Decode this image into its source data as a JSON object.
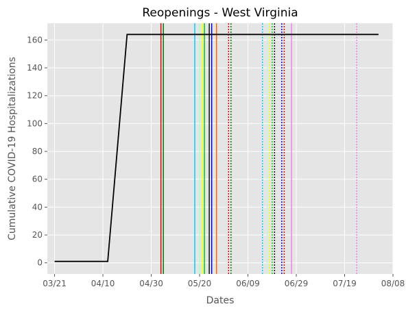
{
  "chart_data": {
    "type": "line",
    "title": "Reopenings - West Virginia",
    "xlabel": "Dates",
    "ylabel": "Cumulative COVID-19 Hospitalizations",
    "x_ticks": [
      "03/21",
      "04/10",
      "04/30",
      "05/20",
      "06/09",
      "06/29",
      "07/19",
      "08/08"
    ],
    "xlim": [
      "2020-03-18",
      "2020-08-08"
    ],
    "y_ticks": [
      0,
      20,
      40,
      60,
      80,
      100,
      120,
      140,
      160
    ],
    "ylim": [
      -8,
      172
    ],
    "grid": true,
    "series": [
      {
        "color": "#000000",
        "points": [
          {
            "x": "2020-03-21",
            "y": 1
          },
          {
            "x": "2020-04-12",
            "y": 1
          },
          {
            "x": "2020-04-20",
            "y": 164
          },
          {
            "x": "2020-08-02",
            "y": 164
          }
        ]
      }
    ],
    "vertical_lines": [
      {
        "x": "2020-05-04",
        "color": "#cc0000",
        "style": "solid"
      },
      {
        "x": "2020-05-05",
        "color": "#007700",
        "style": "solid"
      },
      {
        "x": "2020-05-18",
        "color": "#00ccff",
        "style": "solid"
      },
      {
        "x": "2020-05-20",
        "color": "#aaffcc",
        "style": "solid"
      },
      {
        "x": "2020-05-21",
        "color": "#ffff00",
        "style": "solid"
      },
      {
        "x": "2020-05-22",
        "color": "#00cc00",
        "style": "solid"
      },
      {
        "x": "2020-05-24",
        "color": "#111111",
        "style": "solid"
      },
      {
        "x": "2020-05-25",
        "color": "#0000cc",
        "style": "solid"
      },
      {
        "x": "2020-05-27",
        "color": "#ff6600",
        "style": "solid"
      },
      {
        "x": "2020-06-01",
        "color": "#cc0000",
        "style": "dotted"
      },
      {
        "x": "2020-06-02",
        "color": "#007700",
        "style": "dotted"
      },
      {
        "x": "2020-06-15",
        "color": "#00ccff",
        "style": "dotted"
      },
      {
        "x": "2020-06-17",
        "color": "#aaffcc",
        "style": "dotted"
      },
      {
        "x": "2020-06-18",
        "color": "#ffff00",
        "style": "dotted"
      },
      {
        "x": "2020-06-19",
        "color": "#00cc00",
        "style": "dotted"
      },
      {
        "x": "2020-06-20",
        "color": "#111111",
        "style": "dotted"
      },
      {
        "x": "2020-06-23",
        "color": "#0000cc",
        "style": "dotted"
      },
      {
        "x": "2020-06-24",
        "color": "#cc0000",
        "style": "dotted"
      },
      {
        "x": "2020-06-27",
        "color": "#ee82ee",
        "style": "solid"
      },
      {
        "x": "2020-07-24",
        "color": "#ee82ee",
        "style": "dotted"
      }
    ]
  }
}
